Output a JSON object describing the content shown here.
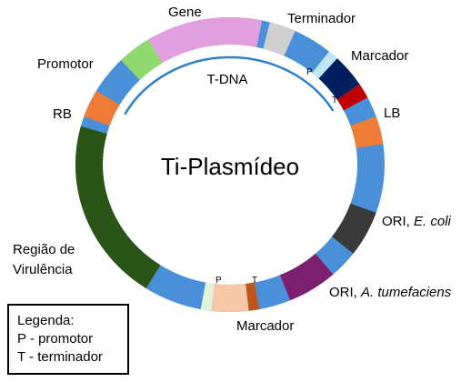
{
  "diagram": {
    "center_label": "Ti-Plasmídeo",
    "tdna_label": "T-DNA",
    "colors": {
      "backbone": "#4a90d9",
      "gene": "#e39ee0",
      "terminator": "#cfcfcf",
      "marker_promoter": "#bfe5f5",
      "marker_body": "#001f5e",
      "marker_terminator": "#c00000",
      "lb": "#ee7b36",
      "ori_ecoli": "#3a3a3a",
      "ori_atum": "#7b1f6e",
      "marker2_terminator": "#c0561b",
      "marker2_body": "#f7c7a8",
      "marker2_promoter": "#e1f4d8",
      "virulence": "#2a5516",
      "rb": "#ee7b36",
      "promoter": "#8fd96e",
      "tdna_arc": "#2f80c8"
    },
    "labels": {
      "gene": "Gene",
      "terminator": "Terminador",
      "marker_top": "Marcador",
      "promoter": "Promotor",
      "rb": "RB",
      "lb": "LB",
      "ori_ecoli_prefix": "ORI, ",
      "ori_ecoli_italic": "E. coli",
      "ori_atum_prefix": "ORI, ",
      "ori_atum_italic": "A. tumefaciens",
      "virulence_line1": "Região de",
      "virulence_line2": "Virulência",
      "marker_bottom": "Marcador",
      "p_top": "P",
      "t_top": "T",
      "p_bottom": "P",
      "t_bottom": "T"
    }
  },
  "legend": {
    "title": "Legenda:",
    "line1": "P - promotor",
    "line2": "T - terminador"
  }
}
